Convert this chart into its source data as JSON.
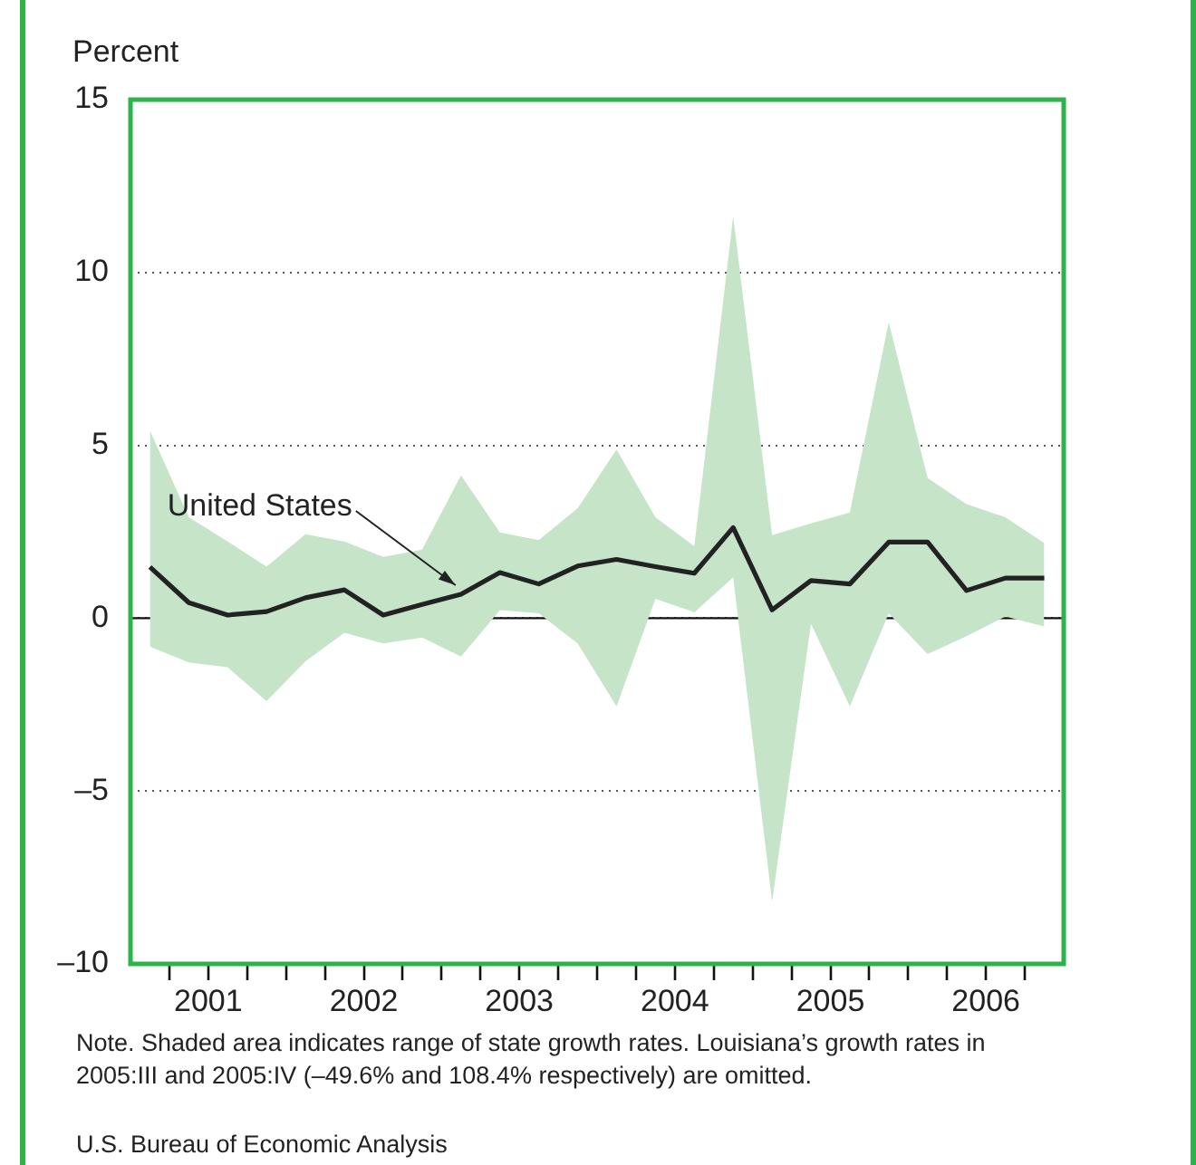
{
  "chart_data": {
    "type": "line",
    "ylabel": "Percent",
    "x": [
      2001.125,
      2001.375,
      2001.625,
      2001.875,
      2002.125,
      2002.375,
      2002.625,
      2002.875,
      2003.125,
      2003.375,
      2003.625,
      2003.875,
      2004.125,
      2004.375,
      2004.625,
      2004.875,
      2005.125,
      2005.375,
      2005.625,
      2005.875,
      2006.125,
      2006.375,
      2006.625,
      2006.875
    ],
    "series": [
      {
        "name": "United States",
        "color": "#222222",
        "values": [
          1.48,
          0.45,
          0.09,
          0.19,
          0.59,
          0.82,
          0.09,
          0.4,
          0.69,
          1.32,
          0.99,
          1.51,
          1.7,
          1.49,
          1.3,
          2.62,
          0.24,
          1.09,
          0.99,
          2.2,
          2.2,
          0.8,
          1.16,
          1.16
        ],
        "lower": [
          -0.82,
          -1.28,
          -1.42,
          -2.4,
          -1.25,
          -0.42,
          -0.73,
          -0.56,
          -1.11,
          0.23,
          0.14,
          -0.73,
          -2.55,
          0.56,
          0.17,
          1.18,
          -8.19,
          -0.16,
          -2.55,
          0.14,
          -1.04,
          -0.52,
          0.05,
          -0.24
        ],
        "upper": [
          5.43,
          2.92,
          2.22,
          1.49,
          2.43,
          2.22,
          1.77,
          1.98,
          4.13,
          2.48,
          2.26,
          3.18,
          4.88,
          2.92,
          2.08,
          11.63,
          2.4,
          2.74,
          3.06,
          8.56,
          4.05,
          3.3,
          2.92,
          2.17
        ]
      }
    ],
    "xlim": [
      2001,
      2007
    ],
    "xticks": [
      {
        "value": 2001.25,
        "label": null
      },
      {
        "value": 2001.5,
        "label": "2001"
      },
      {
        "value": 2001.75,
        "label": null
      },
      {
        "value": 2002,
        "label": null
      },
      {
        "value": 2002.25,
        "label": null
      },
      {
        "value": 2002.5,
        "label": "2002"
      },
      {
        "value": 2002.75,
        "label": null
      },
      {
        "value": 2003,
        "label": null
      },
      {
        "value": 2003.25,
        "label": null
      },
      {
        "value": 2003.5,
        "label": "2003"
      },
      {
        "value": 2003.75,
        "label": null
      },
      {
        "value": 2004,
        "label": null
      },
      {
        "value": 2004.25,
        "label": null
      },
      {
        "value": 2004.5,
        "label": "2004"
      },
      {
        "value": 2004.75,
        "label": null
      },
      {
        "value": 2005,
        "label": null
      },
      {
        "value": 2005.25,
        "label": null
      },
      {
        "value": 2005.5,
        "label": "2005"
      },
      {
        "value": 2005.75,
        "label": null
      },
      {
        "value": 2006,
        "label": null
      },
      {
        "value": 2006.25,
        "label": null
      },
      {
        "value": 2006.5,
        "label": "2006"
      },
      {
        "value": 2006.75,
        "label": null
      }
    ],
    "ylim": [
      -10,
      15
    ],
    "yticks": [
      {
        "value": -10,
        "label": "–10"
      },
      {
        "value": -5,
        "label": "–5"
      },
      0,
      5,
      10,
      15
    ],
    "grid": "y",
    "legend": false,
    "marker": "none",
    "line_style": "solid",
    "ref_lines": [
      {
        "axis": "y",
        "value": 0,
        "color": "#111111"
      }
    ],
    "annotations": [
      "Note. Shaded area indicates range of state growth rates. Louisiana’s growth rates in 2005:III and 2005:IV  (–49.6% and 108.4% respectively) are omitted.",
      "U.S. Bureau of Economic Analysis"
    ]
  }
}
